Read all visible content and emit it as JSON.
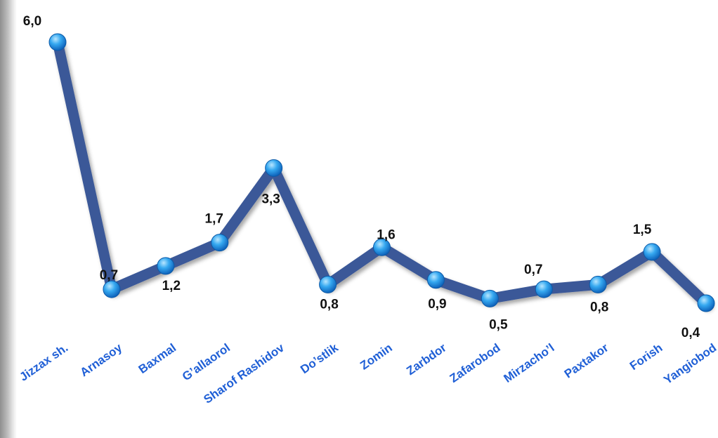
{
  "chart_data": {
    "type": "line",
    "categories": [
      "Jizzax sh.",
      "Arnasoy",
      "Baxmal",
      "G’allaorol",
      "Sharof Rashidov",
      "Do’stlik",
      "Zomin",
      "Zarbdor",
      "Zafarobod",
      "Mirzacho’l",
      "Paxtakor",
      "Forish",
      "Yangiobod"
    ],
    "series": [
      {
        "values": [
          6.0,
          0.7,
          1.2,
          1.7,
          3.3,
          0.8,
          1.6,
          0.9,
          0.5,
          0.7,
          0.8,
          1.5,
          0.4
        ],
        "labels": [
          "6,0",
          "0,7",
          "1,2",
          "1,7",
          "3,3",
          "0,8",
          "1,6",
          "0,9",
          "0,5",
          "0,7",
          "0,8",
          "1,5",
          "0,4"
        ]
      }
    ],
    "grid": false,
    "legend": "none",
    "colors": {
      "line": "#3b5998",
      "marker": "#2a9be8",
      "marker_highlight": "#9ad6ff",
      "data_label": "#111111",
      "category_label": "#1f5fd6"
    }
  }
}
